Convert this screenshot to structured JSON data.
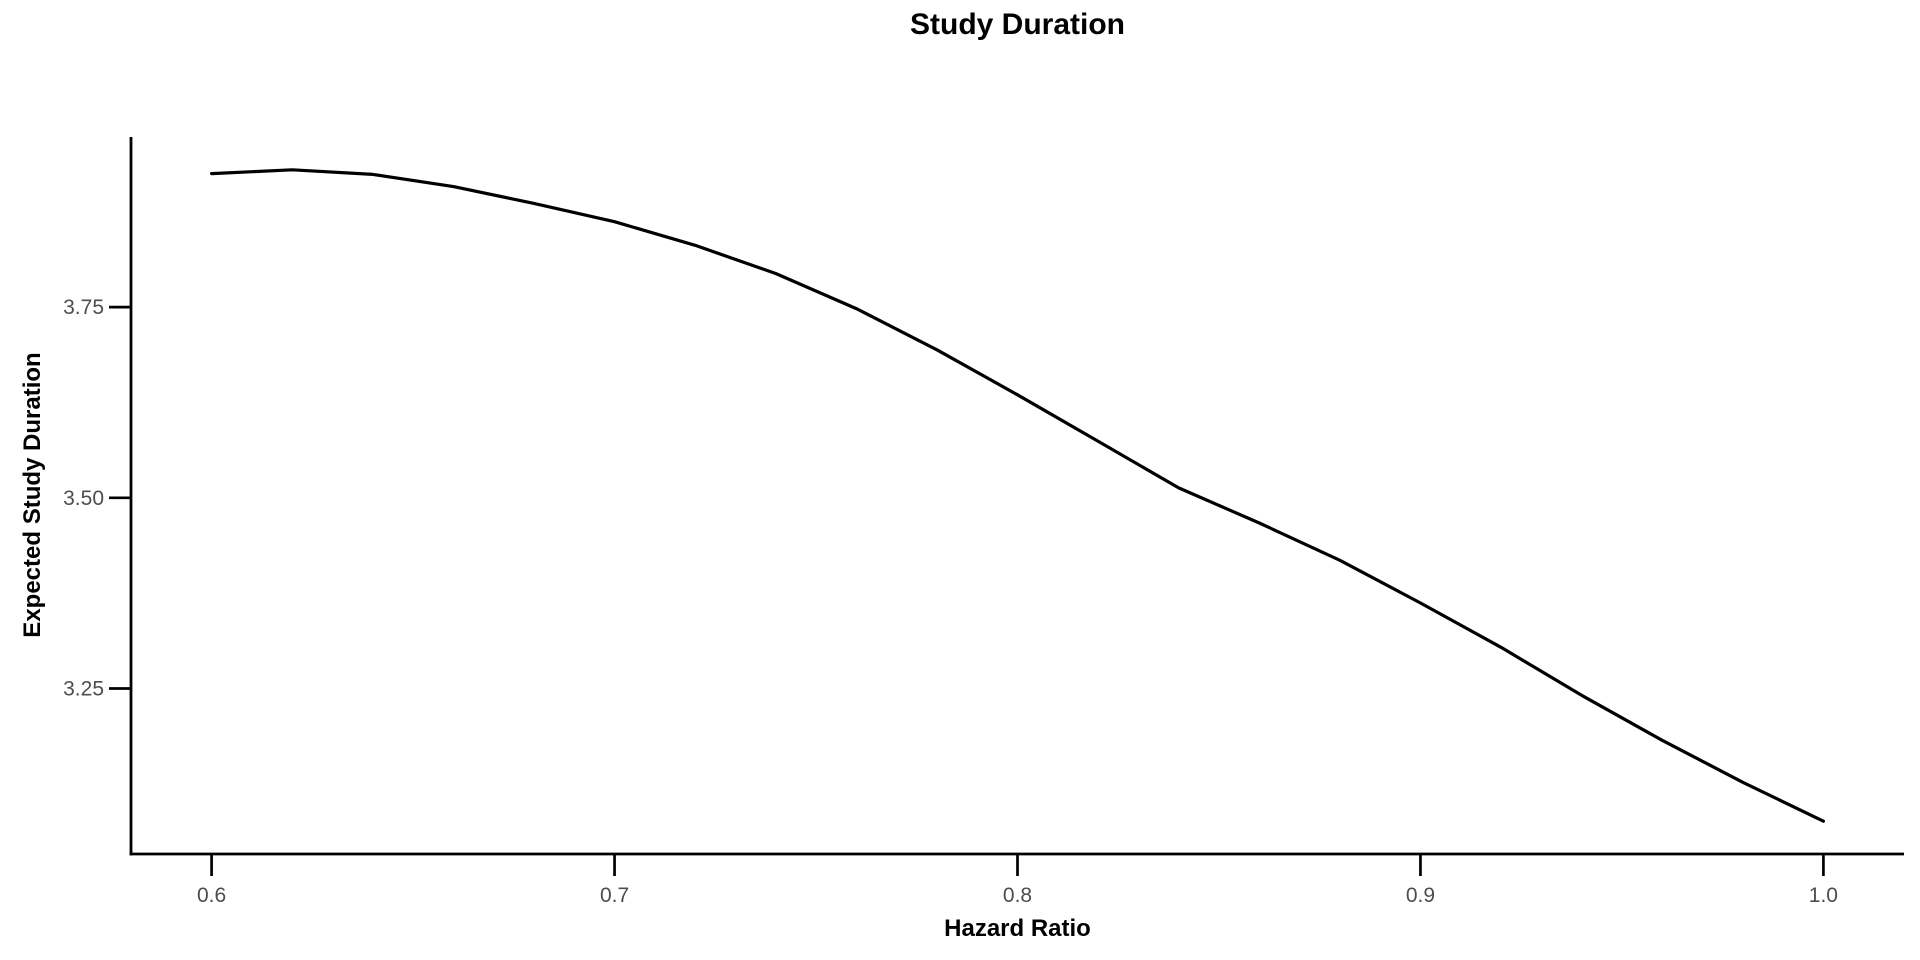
{
  "chart_data": {
    "type": "line",
    "title": "Study Duration",
    "xlabel": "Hazard Ratio",
    "ylabel": "Expected Study Duration",
    "x": [
      0.6,
      0.62,
      0.64,
      0.66,
      0.68,
      0.7,
      0.72,
      0.74,
      0.76,
      0.78,
      0.8,
      0.82,
      0.84,
      0.86,
      0.88,
      0.9,
      0.92,
      0.94,
      0.96,
      0.98,
      1.0
    ],
    "series": [
      {
        "name": "expected-study-duration",
        "values": [
          3.925,
          3.93,
          3.924,
          3.908,
          3.886,
          3.862,
          3.831,
          3.794,
          3.748,
          3.694,
          3.635,
          3.574,
          3.513,
          3.467,
          3.418,
          3.362,
          3.304,
          3.241,
          3.182,
          3.127,
          3.076
        ]
      }
    ],
    "xlim": [
      0.58,
      1.02
    ],
    "ylim": [
      3.033,
      3.973
    ],
    "xticks": [
      "0.6",
      "0.7",
      "0.8",
      "0.9",
      "1.0"
    ],
    "yticks": [
      "3.25",
      "3.50",
      "3.75"
    ],
    "grid": false,
    "legend": false,
    "line_color": "#000000",
    "line_width": 3.2,
    "axis_color": "#000000",
    "tick_label_color": "#4D4D4D",
    "background": "#FFFFFF"
  }
}
